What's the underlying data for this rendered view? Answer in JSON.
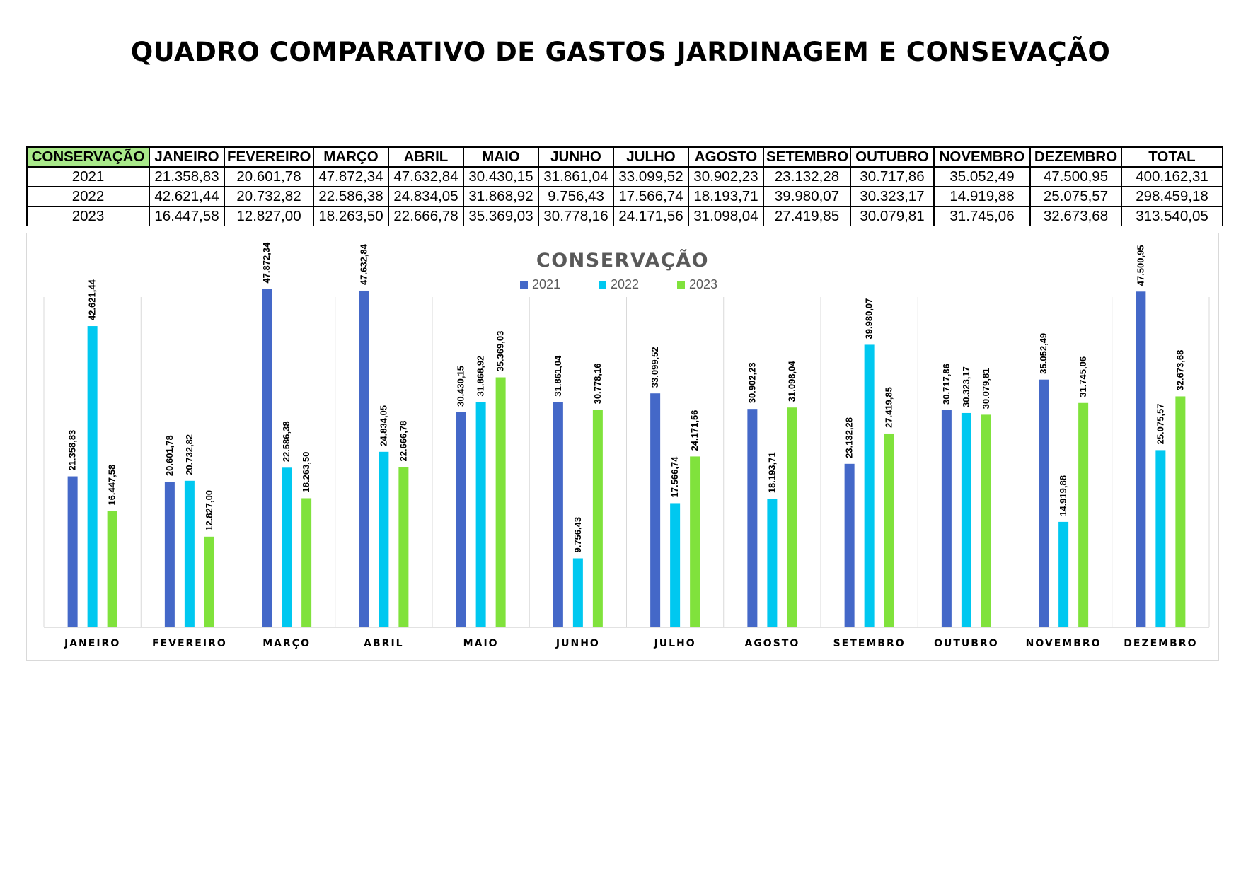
{
  "page_title": "QUADRO COMPARATIVO DE GASTOS JARDINAGEM E CONSEVAÇÃO",
  "table": {
    "headers": [
      "CONSERVAÇÃO",
      "JANEIRO",
      "FEVEREIRO",
      "MARÇO",
      "ABRIL",
      "MAIO",
      "JUNHO",
      "JULHO",
      "AGOSTO",
      "SETEMBRO",
      "OUTUBRO",
      "NOVEMBRO",
      "DEZEMBRO",
      "TOTAL"
    ],
    "rows": [
      [
        "2021",
        "21.358,83",
        "20.601,78",
        "47.872,34",
        "47.632,84",
        "30.430,15",
        "31.861,04",
        "33.099,52",
        "30.902,23",
        "23.132,28",
        "30.717,86",
        "35.052,49",
        "47.500,95",
        "400.162,31"
      ],
      [
        "2022",
        "42.621,44",
        "20.732,82",
        "22.586,38",
        "24.834,05",
        "31.868,92",
        "9.756,43",
        "17.566,74",
        "18.193,71",
        "39.980,07",
        "30.323,17",
        "14.919,88",
        "25.075,57",
        "298.459,18"
      ],
      [
        "2023",
        "16.447,58",
        "12.827,00",
        "18.263,50",
        "22.666,78",
        "35.369,03",
        "30.778,16",
        "24.171,56",
        "31.098,04",
        "27.419,85",
        "30.079,81",
        "31.745,06",
        "32.673,68",
        "313.540,05"
      ]
    ],
    "header_highlight_color": "#a9e98a"
  },
  "chart_data": {
    "type": "bar",
    "title": "CONSERVAÇÃO",
    "categories": [
      "JANEIRO",
      "FEVEREIRO",
      "MARÇO",
      "ABRIL",
      "MAIO",
      "JUNHO",
      "JULHO",
      "AGOSTO",
      "SETEMBRO",
      "OUTUBRO",
      "NOVEMBRO",
      "DEZEMBRO"
    ],
    "series": [
      {
        "name": "2021",
        "color": "#4468c8",
        "values": [
          21358.83,
          20601.78,
          47872.34,
          47632.84,
          30430.15,
          31861.04,
          33099.52,
          30902.23,
          23132.28,
          30717.86,
          35052.49,
          47500.95
        ],
        "labels": [
          "21.358,83",
          "20.601,78",
          "47.872,34",
          "47.632,84",
          "30.430,15",
          "31.861,04",
          "33.099,52",
          "30.902,23",
          "23.132,28",
          "30.717,86",
          "35.052,49",
          "47.500,95"
        ]
      },
      {
        "name": "2022",
        "color": "#00c8f0",
        "values": [
          42621.44,
          20732.82,
          22586.38,
          24834.05,
          31868.92,
          9756.43,
          17566.74,
          18193.71,
          39980.07,
          30323.17,
          14919.88,
          25075.57
        ],
        "labels": [
          "42.621,44",
          "20.732,82",
          "22.586,38",
          "24.834,05",
          "31.868,92",
          "9.756,43",
          "17.566,74",
          "18.193,71",
          "39.980,07",
          "30.323,17",
          "14.919,88",
          "25.075,57"
        ]
      },
      {
        "name": "2023",
        "color": "#80e23c",
        "values": [
          16447.58,
          12827.0,
          18263.5,
          22666.78,
          35369.03,
          30778.16,
          24171.56,
          31098.04,
          27419.85,
          30079.81,
          31745.06,
          32673.68
        ],
        "labels": [
          "16.447,58",
          "12.827,00",
          "18.263,50",
          "22.666,78",
          "35.369,03",
          "30.778,16",
          "24.171,56",
          "31.098,04",
          "27.419,85",
          "30.079,81",
          "31.745,06",
          "32.673,68"
        ]
      }
    ],
    "ylim": [
      0,
      50000
    ],
    "legend_position": "top",
    "grid": "vertical category separators",
    "data_labels": "rotated, above bars"
  }
}
